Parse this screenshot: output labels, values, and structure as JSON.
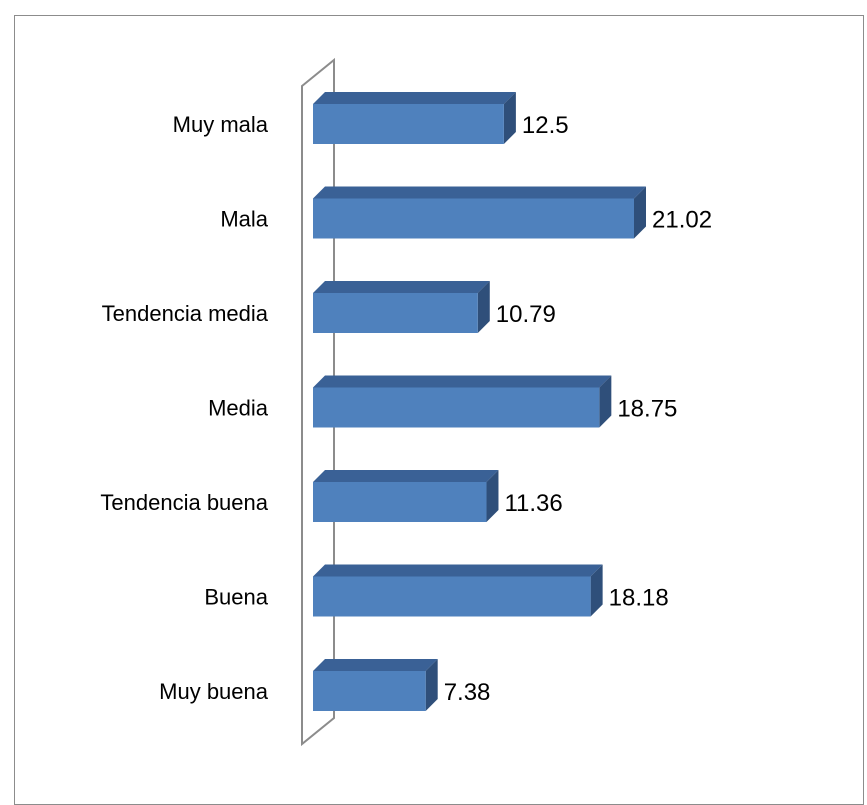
{
  "chart_data": {
    "type": "bar",
    "orientation": "horizontal",
    "style": "3d",
    "categories": [
      "Muy mala",
      "Mala",
      "Tendencia media",
      "Media",
      "Tendencia buena",
      "Buena",
      "Muy buena"
    ],
    "values": [
      12.5,
      21.02,
      10.79,
      18.75,
      11.36,
      18.18,
      7.38
    ],
    "data_labels": [
      "12.5",
      "21.02",
      "10.79",
      "18.75",
      "11.36",
      "18.18",
      "7.38"
    ],
    "title": "",
    "xlabel": "",
    "ylabel": "",
    "xlim": [
      0,
      21.02
    ],
    "grid": false,
    "legend": "none",
    "colors": {
      "bar_front": "#4f81bd",
      "bar_top": "#3a6196",
      "bar_side": "#2f4f7a",
      "axis_wall": "#8c8c8c"
    }
  }
}
